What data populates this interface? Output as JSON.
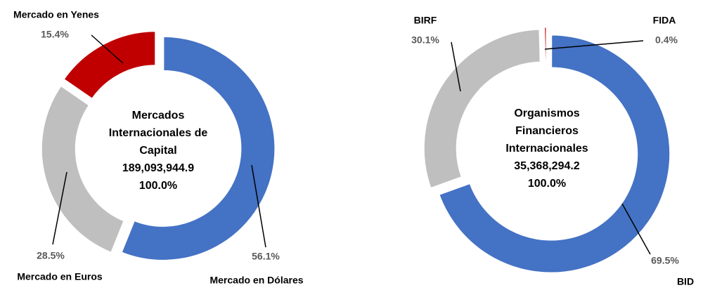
{
  "chart_data": [
    {
      "type": "donut",
      "center_title": [
        "Mercados",
        "Internacionales de",
        "Capital"
      ],
      "center_total": "189,093,944.9",
      "center_percent": "100.0%",
      "categories": [
        "Mercado en Dólares",
        "Mercado en Euros",
        "Mercado en Yenes"
      ],
      "values": [
        56.1,
        28.5,
        15.4
      ],
      "value_labels": [
        "56.1%",
        "28.5%",
        "15.4%"
      ],
      "colors": [
        "#4472c4",
        "#bfbfbf",
        "#c00000"
      ]
    },
    {
      "type": "donut",
      "center_title": [
        "Organismos",
        "Financieros",
        "Internacionales"
      ],
      "center_total": "35,368,294.2",
      "center_percent": "100.0%",
      "categories": [
        "BID",
        "BIRF",
        "FIDA"
      ],
      "values": [
        69.5,
        30.1,
        0.4
      ],
      "value_labels": [
        "69.5%",
        "30.1%",
        "0.4%"
      ],
      "colors": [
        "#4472c4",
        "#bfbfbf",
        "#c00000"
      ]
    }
  ]
}
